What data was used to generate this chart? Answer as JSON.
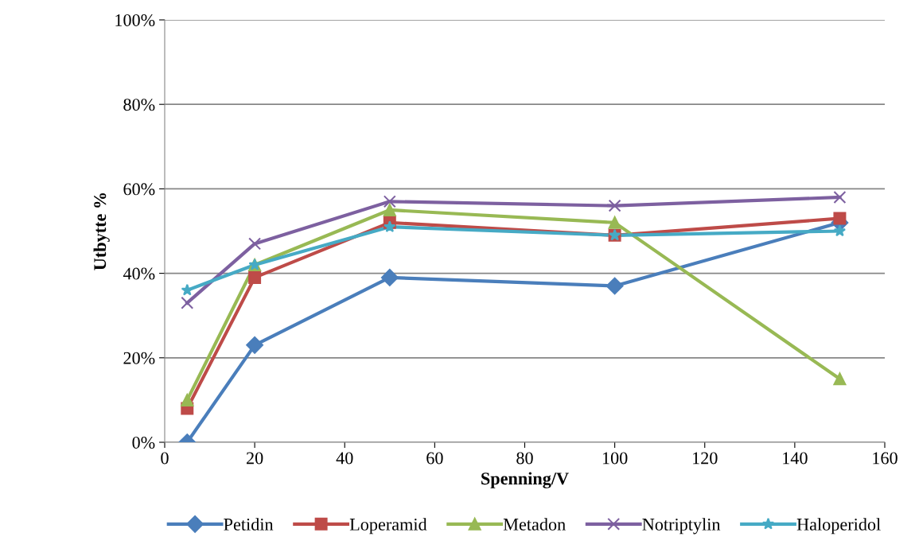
{
  "chart_data": {
    "type": "line",
    "xlabel": "Spenning/V",
    "ylabel": "Utbytte %",
    "x": [
      5,
      20,
      50,
      100,
      150
    ],
    "xlim": [
      0,
      160
    ],
    "xticks": [
      0,
      20,
      40,
      60,
      80,
      100,
      120,
      140,
      160
    ],
    "ylim": [
      0,
      100
    ],
    "yticks": [
      {
        "value": 0,
        "label": "0%"
      },
      {
        "value": 20,
        "label": "20%"
      },
      {
        "value": 40,
        "label": "40%"
      },
      {
        "value": 60,
        "label": "60%"
      },
      {
        "value": 80,
        "label": "80%"
      },
      {
        "value": 100,
        "label": "100%"
      }
    ],
    "grid": "y",
    "legend": "bottom",
    "line_style": "solid",
    "series": [
      {
        "name": "Petidin",
        "color": "#4a7ebb",
        "marker": "diamond",
        "values": [
          0,
          23,
          39,
          37,
          52
        ]
      },
      {
        "name": "Loperamid",
        "color": "#be4b48",
        "marker": "square",
        "values": [
          8,
          39,
          52,
          49,
          53
        ]
      },
      {
        "name": "Metadon",
        "color": "#98b954",
        "marker": "triangle",
        "values": [
          10,
          42,
          55,
          52,
          15
        ]
      },
      {
        "name": "Notriptylin",
        "color": "#7d60a0",
        "marker": "cross",
        "values": [
          33,
          47,
          57,
          56,
          58
        ]
      },
      {
        "name": "Haloperidol",
        "color": "#46aac5",
        "marker": "star",
        "values": [
          36,
          42,
          51,
          49,
          50
        ]
      }
    ]
  }
}
